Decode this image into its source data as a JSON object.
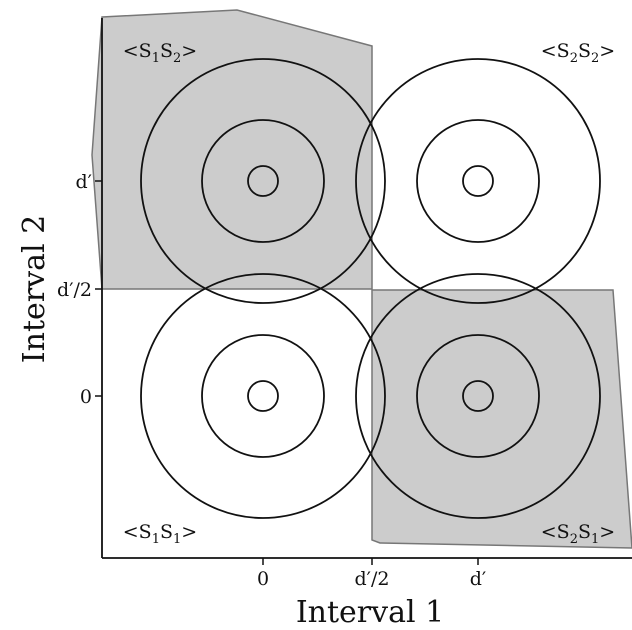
{
  "diagram": {
    "x_axis": {
      "title": "Interval 1",
      "ticks": [
        "0",
        "d′/2",
        "d′"
      ]
    },
    "y_axis": {
      "title": "Interval 2",
      "ticks": [
        "0",
        "d′/2",
        "d′"
      ]
    },
    "region_labels": {
      "top_left": "<S",
      "top_right": "<S",
      "bottom_left": "<S",
      "bottom_right": "<S"
    },
    "region_parts": {
      "tl": [
        "<S",
        "1",
        "S",
        "2",
        ">"
      ],
      "tr": [
        "<S",
        "2",
        "S",
        "2",
        ">"
      ],
      "bl": [
        "<S",
        "1",
        "S",
        "1",
        ">"
      ],
      "br": [
        "<S",
        "2",
        "S",
        "1",
        ">"
      ]
    },
    "colors": {
      "shade": "#cccccc",
      "shade_edge": "#777777",
      "line": "#111111"
    }
  }
}
